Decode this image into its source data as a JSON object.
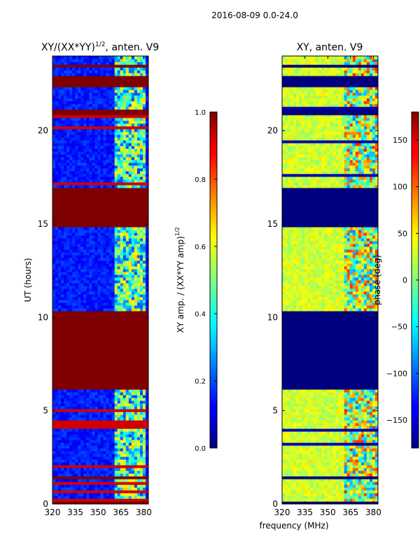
{
  "suptitle": "2016-08-09 0.0-24.0",
  "xlabel_shared": "frequency (MHz)",
  "chart_data": [
    {
      "type": "heatmap",
      "title_main": "XY/(XX*YY)",
      "title_sup": "1/2",
      "title_tail": ", anten. V9",
      "ylabel": "UT (hours)",
      "xlim": [
        320,
        383
      ],
      "ylim": [
        0,
        24
      ],
      "xticks": [
        320,
        335,
        350,
        365,
        380
      ],
      "yticks": [
        0,
        5,
        10,
        15,
        20
      ],
      "rfi_band": [
        360,
        380
      ],
      "flagged_hours": [
        [
          0,
          0.2
        ],
        [
          1.3,
          1.5
        ],
        [
          6.2,
          10.4
        ],
        [
          14.9,
          17.0
        ],
        [
          20.8,
          21.1
        ],
        [
          22.3,
          23.0
        ],
        [
          23.4,
          23.6
        ]
      ],
      "colorbar": {
        "label_main": "XY amp. / (XX*YY amp)",
        "label_sup": "1/2",
        "range": [
          0.0,
          1.0
        ],
        "ticks": [
          0.0,
          0.2,
          0.4,
          0.6,
          0.8,
          1.0
        ],
        "tick_labels": [
          "0.0",
          "0.2",
          "0.4",
          "0.6",
          "0.8",
          "1.0"
        ]
      }
    },
    {
      "type": "heatmap",
      "title": "XY, anten. V9",
      "xlim": [
        320,
        383
      ],
      "ylim": [
        0,
        24
      ],
      "xticks": [
        320,
        335,
        350,
        365,
        380
      ],
      "yticks": [
        0,
        5,
        10,
        15,
        20
      ],
      "flagged_hours": [
        [
          0,
          0.2
        ],
        [
          1.3,
          1.5
        ],
        [
          6.2,
          10.4
        ],
        [
          14.9,
          17.0
        ],
        [
          20.8,
          21.1
        ],
        [
          22.3,
          23.0
        ],
        [
          23.4,
          23.6
        ]
      ],
      "colorbar": {
        "label": "phase (deg)",
        "range": [
          -180,
          180
        ],
        "ticks": [
          -150,
          -100,
          -50,
          0,
          50,
          100,
          150
        ],
        "tick_labels": [
          "−150",
          "−100",
          "−50",
          "0",
          "50",
          "100",
          "150"
        ]
      }
    }
  ]
}
